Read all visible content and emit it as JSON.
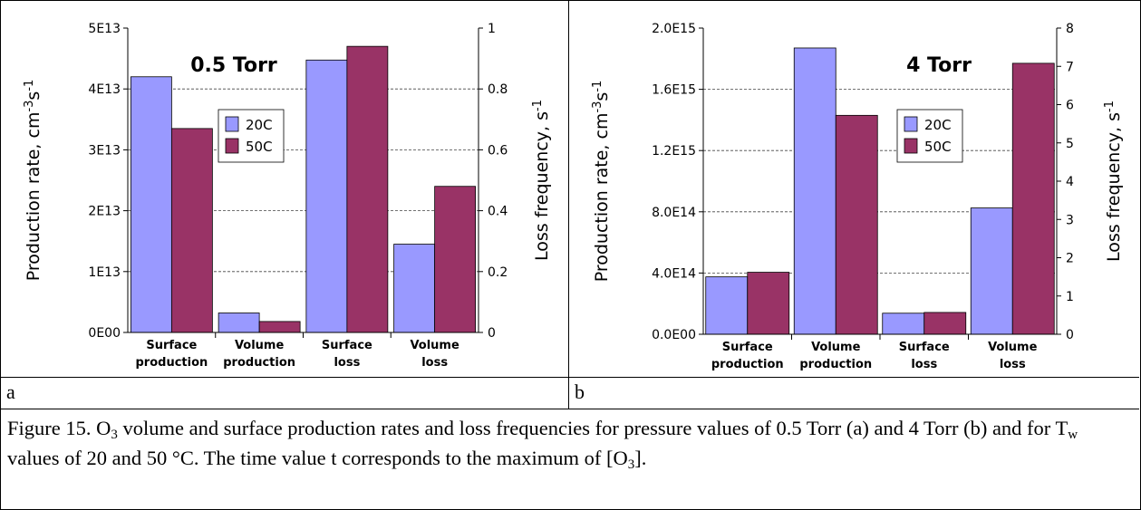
{
  "chart_data": [
    {
      "type": "bar",
      "panel_letter": "a",
      "annotation": "0.5 Torr",
      "categories": [
        [
          "Surface",
          "production"
        ],
        [
          "Volume",
          "production"
        ],
        [
          "Surface",
          "loss"
        ],
        [
          "Volume",
          "loss"
        ]
      ],
      "series": [
        {
          "name": "20C",
          "color": "#9999ff",
          "values": [
            42000000000000.0,
            3200000000000.0,
            0.895,
            0.29
          ]
        },
        {
          "name": "50C",
          "color": "#993366",
          "values": [
            33500000000000.0,
            1800000000000.0,
            0.94,
            0.48
          ]
        }
      ],
      "ylabel": "Production rate, cm",
      "ylabel_sup1": "-3",
      "ylabel_mid": "s",
      "ylabel_sup2": "-1",
      "y2label": "Loss frequency, s",
      "y2label_sup": "-1",
      "ylim": [
        0,
        50000000000000.0
      ],
      "y2lim": [
        0,
        1
      ],
      "yticks": [
        "0E00",
        "1E13",
        "2E13",
        "3E13",
        "4E13",
        "5E13"
      ],
      "y2ticks": [
        "0",
        "0.2",
        "0.4",
        "0.6",
        "0.8",
        "1"
      ],
      "axis_for_category": [
        "left",
        "left",
        "right",
        "right"
      ],
      "grid": true,
      "legend_position": "center-right"
    },
    {
      "type": "bar",
      "panel_letter": "b",
      "annotation": "4 Torr",
      "categories": [
        [
          "Surface",
          "production"
        ],
        [
          "Volume",
          "production"
        ],
        [
          "Surface",
          "loss"
        ],
        [
          "Volume",
          "loss"
        ]
      ],
      "series": [
        {
          "name": "20C",
          "color": "#9999ff",
          "values": [
            375000000000000.0,
            1870000000000000.0,
            0.55,
            3.3
          ]
        },
        {
          "name": "50C",
          "color": "#993366",
          "values": [
            405000000000000.0,
            1430000000000000.0,
            0.57,
            7.08
          ]
        }
      ],
      "ylabel": "Production rate, cm",
      "ylabel_sup1": "-3",
      "ylabel_mid": "s",
      "ylabel_sup2": "-1",
      "y2label": "Loss frequency, s",
      "y2label_sup": "-1",
      "ylim": [
        0,
        2000000000000000.0
      ],
      "y2lim": [
        0,
        8
      ],
      "yticks": [
        "0.0E00",
        "4.0E14",
        "8.0E14",
        "1.2E15",
        "1.6E15",
        "2.0E15"
      ],
      "y2ticks": [
        "0",
        "1",
        "2",
        "3",
        "4",
        "5",
        "6",
        "7",
        "8"
      ],
      "axis_for_category": [
        "left",
        "left",
        "right",
        "right"
      ],
      "grid": true,
      "legend_position": "center-right"
    }
  ],
  "caption": {
    "part1": "Figure 15. O",
    "sub1": "3",
    "part2": " volume and surface production rates and loss frequencies for pressure values of 0.5 Torr (a) and 4 Torr (b) and for T",
    "sub2": "w",
    "part3": " values of 20 and 50 °C. The time value t corresponds to the maximum of [O",
    "sub3": "3",
    "part4": "]."
  }
}
